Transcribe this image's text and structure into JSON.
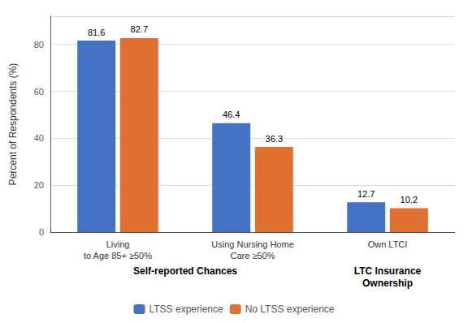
{
  "chart_data": {
    "type": "bar",
    "categories": [
      "Living\nto Age 85+ ≥50%",
      "Using Nursing Home\nCare ≥50%",
      "Own LTCI"
    ],
    "series": [
      {
        "name": "LTSS experience",
        "color": "#4472C4",
        "values": [
          81.6,
          46.4,
          12.7
        ]
      },
      {
        "name": "No LTSS experience",
        "color": "#E07030",
        "values": [
          82.7,
          36.3,
          10.2
        ]
      }
    ],
    "ylabel": "Percent of Respondents (%)",
    "ylim": [
      0,
      92
    ],
    "yticks": [
      0,
      20,
      40,
      60,
      80
    ],
    "grid": true,
    "legend": "bottom",
    "data_labels": true,
    "annotations": [
      "Self-reported Chances",
      "LTC Insurance\nOwnership"
    ]
  }
}
